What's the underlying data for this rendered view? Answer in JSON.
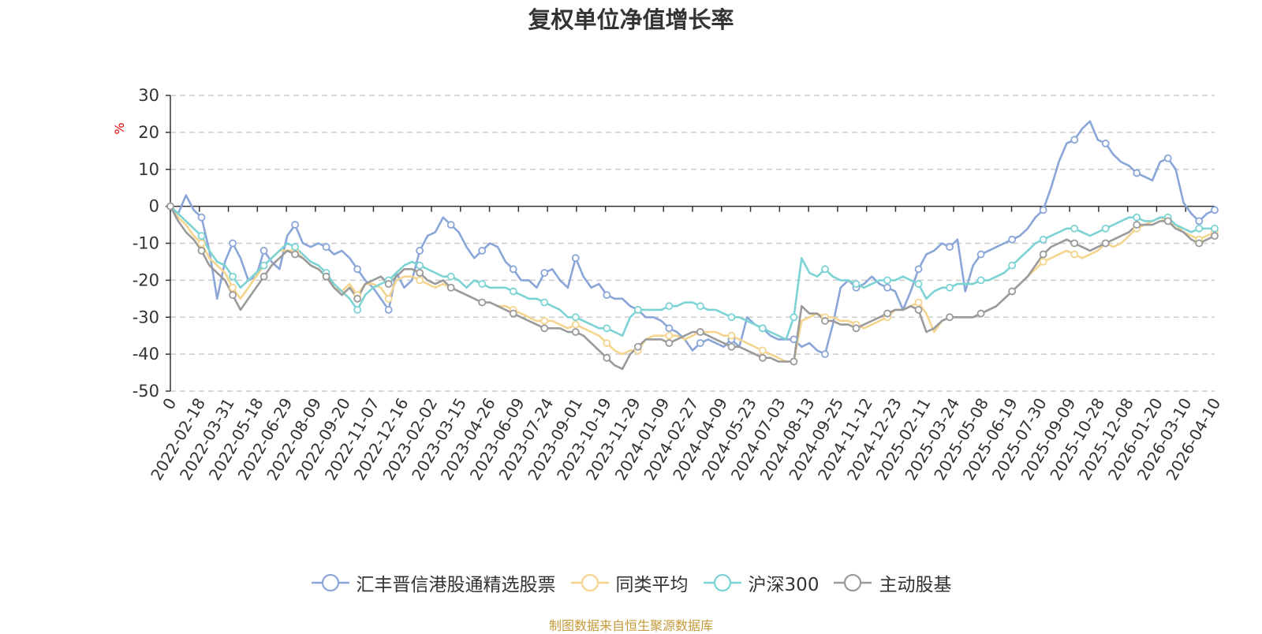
{
  "source_note": "制图数据来自恒生聚源数据库",
  "chart_data": {
    "type": "line",
    "title": "复权单位净值增长率",
    "ylabel": "%",
    "ylim": [
      -50,
      30
    ],
    "y_ticks": [
      30,
      20,
      10,
      0,
      -10,
      -20,
      -30,
      -40,
      -50
    ],
    "grid": true,
    "legend_position": "bottom",
    "x_tick_labels": [
      "0",
      "2022-02-18",
      "2022-03-31",
      "2022-05-18",
      "2022-06-29",
      "2022-08-09",
      "2022-09-20",
      "2022-11-07",
      "2022-12-16",
      "2023-02-02",
      "2023-03-15",
      "2023-04-26",
      "2023-06-09",
      "2023-07-24",
      "2023-09-01",
      "2023-10-19",
      "2023-11-29",
      "2024-01-09",
      "2024-02-27",
      "2024-04-09",
      "2024-05-23",
      "2024-07-03",
      "2024-08-13",
      "2024-09-25",
      "2024-11-12",
      "2024-12-23",
      "2025-02-11",
      "2025-03-24",
      "2025-05-08",
      "2025-06-19",
      "2025-07-30",
      "2025-09-09",
      "2025-10-28",
      "2025-12-08",
      "2026-01-20",
      "2026-03-10",
      "2026-04-10"
    ],
    "series": [
      {
        "name": "汇丰晋信港股通精选股票",
        "color": "#8aa6d8",
        "values": [
          0,
          -2,
          3,
          -1,
          -3,
          -12,
          -25,
          -15,
          -10,
          -14,
          -20,
          -19,
          -12,
          -15,
          -17,
          -8,
          -5,
          -10,
          -11,
          -10,
          -11,
          -13,
          -12,
          -14,
          -17,
          -20,
          -22,
          -25,
          -28,
          -18,
          -22,
          -20,
          -12,
          -8,
          -7,
          -3,
          -5,
          -7,
          -11,
          -14,
          -12,
          -10,
          -11,
          -15,
          -17,
          -20,
          -20,
          -22,
          -18,
          -17,
          -20,
          -22,
          -14,
          -19,
          -22,
          -21,
          -24,
          -25,
          -25,
          -27,
          -28,
          -30,
          -30,
          -31,
          -33,
          -34,
          -36,
          -39,
          -37,
          -36,
          -37,
          -38,
          -36,
          -38,
          -30,
          -32,
          -33,
          -35,
          -36,
          -36,
          -36,
          -38,
          -37,
          -39,
          -40,
          -32,
          -22,
          -20,
          -22,
          -21,
          -19,
          -21,
          -22,
          -23,
          -28,
          -23,
          -17,
          -13,
          -12,
          -10,
          -11,
          -9,
          -23,
          -16,
          -13,
          -12,
          -11,
          -10,
          -9,
          -8,
          -6,
          -3,
          -1,
          5,
          12,
          17,
          18,
          21,
          23,
          18,
          17,
          14,
          12,
          11,
          9,
          8,
          7,
          12,
          13,
          10,
          1,
          -2,
          -4,
          -2,
          -1
        ]
      },
      {
        "name": "同类平均",
        "color": "#f5d48e",
        "values": [
          0,
          -3,
          -5,
          -8,
          -10,
          -14,
          -16,
          -18,
          -22,
          -25,
          -22,
          -19,
          -16,
          -14,
          -12,
          -12,
          -12,
          -14,
          -16,
          -17,
          -19,
          -22,
          -23,
          -21,
          -24,
          -21,
          -21,
          -22,
          -25,
          -20,
          -19,
          -19,
          -20,
          -21,
          -22,
          -21,
          -22,
          -23,
          -24,
          -25,
          -26,
          -26,
          -27,
          -27,
          -28,
          -29,
          -30,
          -31,
          -31,
          -31,
          -32,
          -33,
          -32,
          -33,
          -34,
          -35,
          -37,
          -39,
          -40,
          -39,
          -39,
          -36,
          -35,
          -35,
          -35,
          -35,
          -36,
          -35,
          -34,
          -34,
          -34,
          -35,
          -35,
          -36,
          -37,
          -38,
          -39,
          -40,
          -41,
          -42,
          -42,
          -31,
          -30,
          -29,
          -30,
          -30,
          -31,
          -31,
          -32,
          -33,
          -32,
          -31,
          -30,
          -28,
          -28,
          -27,
          -26,
          -29,
          -34,
          -31,
          -30,
          -30,
          -30,
          -30,
          -29,
          -28,
          -27,
          -25,
          -23,
          -21,
          -19,
          -17,
          -15,
          -14,
          -13,
          -12,
          -13,
          -14,
          -13,
          -12,
          -10,
          -11,
          -10,
          -8,
          -6,
          -5,
          -4,
          -3,
          -4,
          -5,
          -7,
          -8,
          -9,
          -8,
          -7
        ]
      },
      {
        "name": "沪深300",
        "color": "#7dd3d3",
        "values": [
          0,
          -2,
          -4,
          -6,
          -8,
          -12,
          -15,
          -16,
          -19,
          -22,
          -20,
          -18,
          -16,
          -14,
          -12,
          -10,
          -11,
          -13,
          -15,
          -16,
          -18,
          -21,
          -23,
          -25,
          -28,
          -24,
          -22,
          -21,
          -20,
          -18,
          -16,
          -15,
          -16,
          -17,
          -18,
          -19,
          -19,
          -20,
          -22,
          -20,
          -21,
          -22,
          -22,
          -22,
          -23,
          -24,
          -25,
          -25,
          -26,
          -27,
          -28,
          -30,
          -30,
          -31,
          -32,
          -33,
          -33,
          -34,
          -35,
          -30,
          -28,
          -28,
          -28,
          -28,
          -27,
          -27,
          -26,
          -26,
          -27,
          -28,
          -28,
          -29,
          -30,
          -30,
          -31,
          -32,
          -33,
          -34,
          -35,
          -36,
          -30,
          -14,
          -18,
          -19,
          -17,
          -19,
          -20,
          -20,
          -21,
          -22,
          -21,
          -20,
          -20,
          -20,
          -19,
          -20,
          -21,
          -25,
          -23,
          -22,
          -22,
          -21,
          -21,
          -21,
          -20,
          -20,
          -19,
          -18,
          -16,
          -14,
          -12,
          -10,
          -9,
          -8,
          -7,
          -6,
          -6,
          -7,
          -8,
          -7,
          -6,
          -5,
          -4,
          -3,
          -3,
          -4,
          -4,
          -3,
          -3,
          -5,
          -6,
          -7,
          -6,
          -6,
          -6
        ]
      },
      {
        "name": "主动股基",
        "color": "#9a9a9a",
        "values": [
          0,
          -4,
          -7,
          -9,
          -12,
          -16,
          -18,
          -20,
          -24,
          -28,
          -25,
          -22,
          -19,
          -16,
          -14,
          -12,
          -13,
          -14,
          -16,
          -17,
          -19,
          -22,
          -24,
          -22,
          -25,
          -21,
          -20,
          -19,
          -21,
          -19,
          -17,
          -17,
          -18,
          -20,
          -21,
          -20,
          -22,
          -23,
          -24,
          -25,
          -26,
          -26,
          -27,
          -28,
          -29,
          -30,
          -31,
          -32,
          -33,
          -33,
          -33,
          -34,
          -34,
          -35,
          -37,
          -39,
          -41,
          -43,
          -44,
          -40,
          -38,
          -36,
          -36,
          -36,
          -37,
          -36,
          -35,
          -34,
          -34,
          -35,
          -36,
          -37,
          -38,
          -38,
          -39,
          -40,
          -41,
          -41,
          -42,
          -42,
          -42,
          -27,
          -29,
          -29,
          -31,
          -31,
          -32,
          -32,
          -33,
          -32,
          -31,
          -30,
          -29,
          -28,
          -28,
          -27,
          -28,
          -34,
          -33,
          -31,
          -30,
          -30,
          -30,
          -30,
          -29,
          -28,
          -27,
          -25,
          -23,
          -21,
          -19,
          -16,
          -13,
          -11,
          -10,
          -9,
          -10,
          -11,
          -12,
          -11,
          -10,
          -9,
          -8,
          -7,
          -5,
          -5,
          -5,
          -4,
          -4,
          -6,
          -7,
          -9,
          -10,
          -9,
          -8
        ]
      }
    ]
  }
}
